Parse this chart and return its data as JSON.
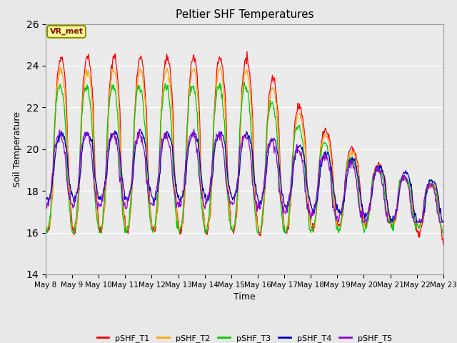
{
  "title": "Peltier SHF Temperatures",
  "xlabel": "Time",
  "ylabel": "Soil Temperature",
  "ylim": [
    14,
    26
  ],
  "yticks": [
    14,
    16,
    18,
    20,
    22,
    24,
    26
  ],
  "annotation_text": "VR_met",
  "colors": {
    "pSHF_T1": "#FF0000",
    "pSHF_T2": "#FFA500",
    "pSHF_T3": "#00CC00",
    "pSHF_T4": "#0000CD",
    "pSHF_T5": "#9400D3"
  },
  "legend_labels": [
    "pSHF_T1",
    "pSHF_T2",
    "pSHF_T3",
    "pSHF_T4",
    "pSHF_T5"
  ],
  "bg_color": "#E8E8E8",
  "plot_bg_color": "#EBEBEB",
  "n_points": 720,
  "x_start": 0,
  "x_end": 15,
  "xtick_positions": [
    0,
    1,
    2,
    3,
    4,
    5,
    6,
    7,
    8,
    9,
    10,
    11,
    12,
    13,
    14,
    15
  ],
  "xtick_labels": [
    "May 8",
    "May 9",
    "May 10",
    "May 11",
    "May 12",
    "May 13",
    "May 14",
    "May 15",
    "May 16",
    "May 17",
    "May 18",
    "May 19",
    "May 20",
    "May 21",
    "May 22",
    "May 23"
  ]
}
